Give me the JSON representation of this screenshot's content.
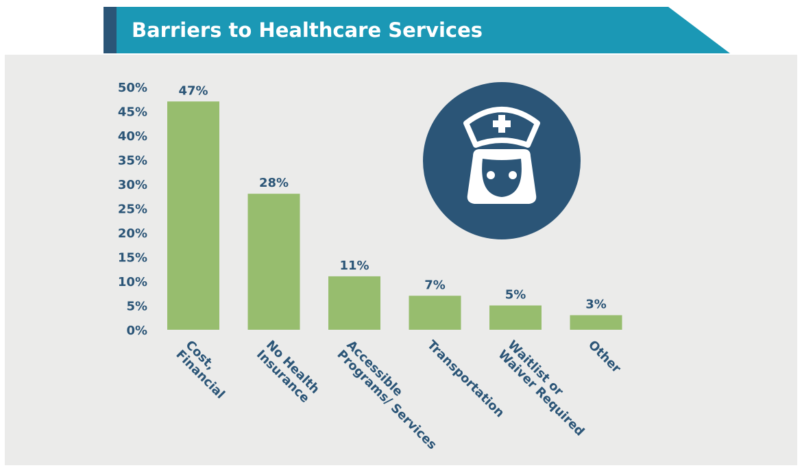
{
  "chart_data": {
    "type": "bar",
    "title": "Barriers to Healthcare Services",
    "categories": [
      "Cost,\nFinancial",
      "No Health\nInsurance",
      "Accessible\nPrograms/ Services",
      "Transportation",
      "Waitlist or\nWaiver Required",
      "Other"
    ],
    "values": [
      47,
      28,
      11,
      7,
      5,
      3
    ],
    "value_labels": [
      "47%",
      "28%",
      "11%",
      "7%",
      "5%",
      "3%"
    ],
    "color": "#97bd6e",
    "ylim": [
      0,
      50
    ],
    "yticks": [
      {
        "value": 0,
        "label": "0%"
      },
      {
        "value": 5,
        "label": "5%"
      },
      {
        "value": 10,
        "label": "10%"
      },
      {
        "value": 15,
        "label": "15%"
      },
      {
        "value": 20,
        "label": "20%"
      },
      {
        "value": 25,
        "label": "25%"
      },
      {
        "value": 30,
        "label": "30%"
      },
      {
        "value": 35,
        "label": "35%"
      },
      {
        "value": 40,
        "label": "40%"
      },
      {
        "value": 45,
        "label": "45%"
      },
      {
        "value": 50,
        "label": "50%"
      }
    ],
    "grid": false
  }
}
